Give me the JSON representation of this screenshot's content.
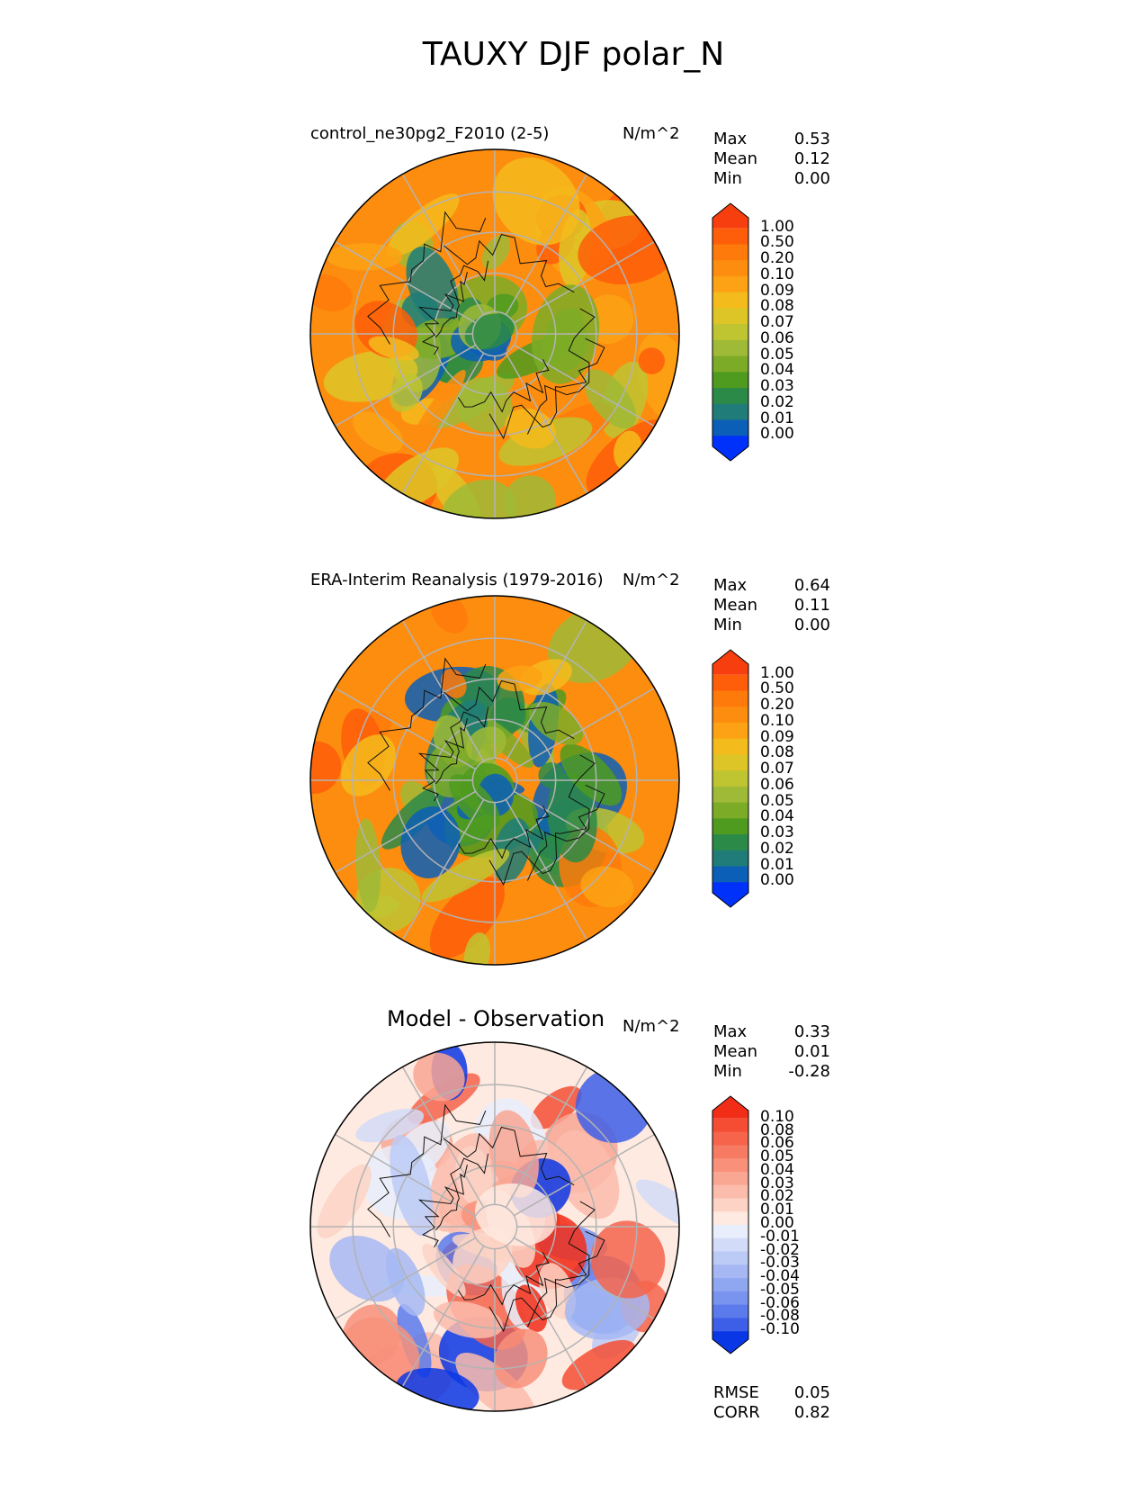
{
  "title": "TAUXY DJF polar_N",
  "chart_data": [
    {
      "type": "heatmap",
      "projection": "north-polar-stereographic",
      "title": "control_ne30pg2_F2010 (2-5)",
      "units": "N/m^2",
      "stats": [
        {
          "label": "Max",
          "value": "0.53"
        },
        {
          "label": "Mean",
          "value": "0.12"
        },
        {
          "label": "Min",
          "value": "0.00"
        }
      ],
      "colorbar_levels": [
        "1.00",
        "0.50",
        "0.20",
        "0.10",
        "0.09",
        "0.08",
        "0.07",
        "0.06",
        "0.05",
        "0.04",
        "0.03",
        "0.02",
        "0.01",
        "0.00"
      ],
      "colorbar_colors": [
        "#f73e0e",
        "#fe5e09",
        "#fe7a0b",
        "#fd8d0f",
        "#fca214",
        "#f4bb1c",
        "#ddc527",
        "#bfc431",
        "#9fba36",
        "#7cab27",
        "#4e9b20",
        "#2b8a48",
        "#1f7c78",
        "#0c5fb7",
        "#0031fa"
      ]
    },
    {
      "type": "heatmap",
      "projection": "north-polar-stereographic",
      "title": "ERA-Interim Reanalysis (1979-2016)",
      "units": "N/m^2",
      "stats": [
        {
          "label": "Max",
          "value": "0.64"
        },
        {
          "label": "Mean",
          "value": "0.11"
        },
        {
          "label": "Min",
          "value": "0.00"
        }
      ],
      "colorbar_levels": [
        "1.00",
        "0.50",
        "0.20",
        "0.10",
        "0.09",
        "0.08",
        "0.07",
        "0.06",
        "0.05",
        "0.04",
        "0.03",
        "0.02",
        "0.01",
        "0.00"
      ],
      "colorbar_colors": [
        "#f73e0e",
        "#fe5e09",
        "#fe7a0b",
        "#fd8d0f",
        "#fca214",
        "#f4bb1c",
        "#ddc527",
        "#bfc431",
        "#9fba36",
        "#7cab27",
        "#4e9b20",
        "#2b8a48",
        "#1f7c78",
        "#0c5fb7",
        "#0031fa"
      ]
    },
    {
      "type": "heatmap",
      "projection": "north-polar-stereographic",
      "title": "Model - Observation",
      "units": "N/m^2",
      "stats": [
        {
          "label": "Max",
          "value": "0.33"
        },
        {
          "label": "Mean",
          "value": "0.01"
        },
        {
          "label": "Min",
          "value": "-0.28"
        }
      ],
      "colorbar_levels": [
        "0.10",
        "0.08",
        "0.06",
        "0.05",
        "0.04",
        "0.03",
        "0.02",
        "0.01",
        "0.00",
        "-0.01",
        "-0.02",
        "-0.03",
        "-0.04",
        "-0.05",
        "-0.06",
        "-0.08",
        "-0.10"
      ],
      "colorbar_colors": [
        "#f22d17",
        "#f44d33",
        "#f5644b",
        "#f77a62",
        "#f8907a",
        "#f9a693",
        "#fbbcab",
        "#fcd3c5",
        "#feeae0",
        "#e8eefb",
        "#d2dcf8",
        "#bccaf6",
        "#a6b8f3",
        "#8fa6f1",
        "#7994ee",
        "#5b7aeb",
        "#3d5fe8",
        "#0a37e5"
      ],
      "footer_stats": [
        {
          "label": "RMSE",
          "value": "0.05"
        },
        {
          "label": "CORR",
          "value": "0.82"
        }
      ]
    }
  ]
}
